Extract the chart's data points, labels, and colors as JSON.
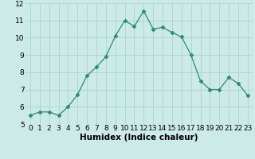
{
  "x": [
    0,
    1,
    2,
    3,
    4,
    5,
    6,
    7,
    8,
    9,
    10,
    11,
    12,
    13,
    14,
    15,
    16,
    17,
    18,
    19,
    20,
    21,
    22,
    23
  ],
  "y": [
    5.5,
    5.7,
    5.7,
    5.5,
    6.0,
    6.7,
    7.8,
    8.3,
    8.9,
    10.1,
    11.0,
    10.65,
    11.55,
    10.5,
    10.6,
    10.3,
    10.05,
    9.0,
    7.5,
    7.0,
    7.0,
    7.7,
    7.35,
    6.65
  ],
  "line_color": "#2e8b6e",
  "marker": "D",
  "markersize": 2.5,
  "bg_color": "#cceae7",
  "grid_color": "#aad4d0",
  "xlabel": "Humidex (Indice chaleur)",
  "ylabel": "",
  "xlim": [
    -0.5,
    23.5
  ],
  "ylim": [
    5,
    12
  ],
  "yticks": [
    5,
    6,
    7,
    8,
    9,
    10,
    11,
    12
  ],
  "xticks": [
    0,
    1,
    2,
    3,
    4,
    5,
    6,
    7,
    8,
    9,
    10,
    11,
    12,
    13,
    14,
    15,
    16,
    17,
    18,
    19,
    20,
    21,
    22,
    23
  ],
  "xlabel_fontsize": 7.5,
  "tick_fontsize": 6.5
}
